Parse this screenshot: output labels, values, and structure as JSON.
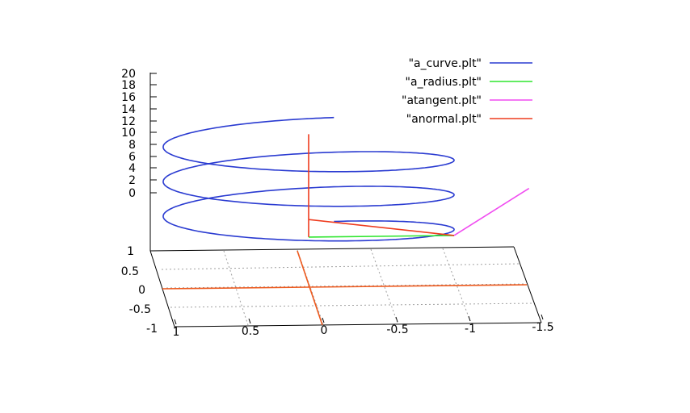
{
  "chart_data": {
    "type": "line",
    "projection": "3d",
    "grid": true,
    "legend_position": "top-right",
    "xlabel": "",
    "ylabel": "",
    "zlabel": "",
    "x_ticks": [
      "1",
      "0.5",
      "0",
      "-0.5",
      "-1",
      "-1.5"
    ],
    "y_ticks": [
      "1",
      "0.5",
      "0",
      "-0.5",
      "-1"
    ],
    "z_ticks": [
      "20",
      "18",
      "16",
      "14",
      "12",
      "10",
      "8",
      "6",
      "4",
      "2",
      "0"
    ],
    "xlim": [
      -1.5,
      1
    ],
    "ylim": [
      -1,
      1
    ],
    "zlim": [
      -6,
      20
    ],
    "series": [
      {
        "name": "\"a_curve.plt\"",
        "color": "#2a3bd1",
        "kind": "helix",
        "radius": 1,
        "z_start": 0,
        "z_end": 19,
        "turns": 3
      },
      {
        "name": "\"a_radius.plt\"",
        "color": "#2ee62e",
        "points": [
          [
            0,
            0,
            -5
          ],
          [
            -1,
            0,
            -5
          ]
        ]
      },
      {
        "name": "\"atangent.plt\"",
        "color": "#f04cf0",
        "points": [
          [
            -1,
            0,
            -5
          ],
          [
            -1.5,
            -0.6,
            1.5
          ]
        ]
      },
      {
        "name": "\"anormal.plt\"",
        "color": "#ee3b1e",
        "points": [
          [
            0,
            0,
            -5
          ],
          [
            0,
            0,
            13.8
          ],
          [
            0,
            0,
            -1.8
          ],
          [
            -1,
            0,
            -5
          ]
        ]
      }
    ]
  }
}
